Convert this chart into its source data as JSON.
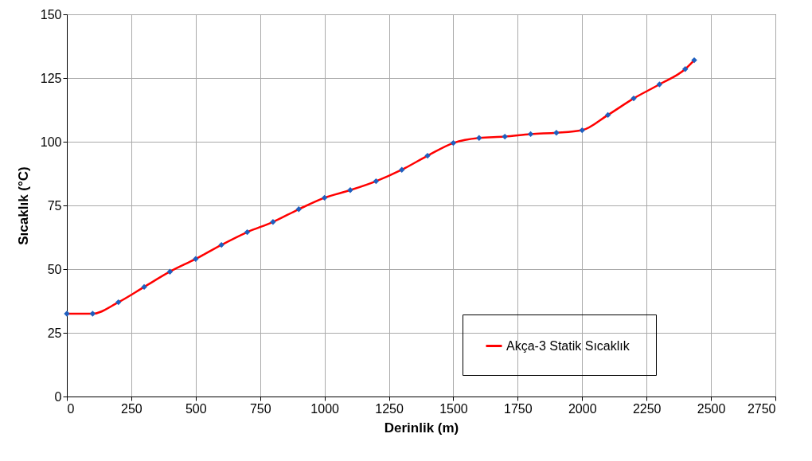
{
  "chart_data": {
    "type": "line",
    "xlabel": "Derinlik (m)",
    "ylabel": "Sıcaklık (°C)",
    "x": [
      0,
      100,
      200,
      300,
      400,
      500,
      600,
      700,
      800,
      900,
      1000,
      1100,
      1200,
      1300,
      1400,
      1500,
      1600,
      1700,
      1800,
      1900,
      2000,
      2100,
      2200,
      2300,
      2400,
      2435
    ],
    "series": [
      {
        "name": "Akça-3  Statik Sıcaklık",
        "color": "#ff0000",
        "values": [
          32.5,
          32.5,
          37,
          43,
          49,
          54,
          59.5,
          64.5,
          68.5,
          73.5,
          78,
          81,
          84.5,
          89,
          94.5,
          99.5,
          101.5,
          102,
          103,
          103.5,
          104.5,
          110.5,
          117,
          122.5,
          128.5,
          132
        ]
      }
    ],
    "xlim": [
      0,
      2750
    ],
    "xticks": [
      0,
      250,
      500,
      750,
      1000,
      1250,
      1500,
      1750,
      2000,
      2250,
      2500,
      2750
    ],
    "ylim": [
      0,
      150
    ],
    "yticks": [
      0,
      25,
      50,
      75,
      100,
      125,
      150
    ],
    "grid": true,
    "legend": "bottom right",
    "marker": "diamond",
    "line_style": "solid"
  }
}
